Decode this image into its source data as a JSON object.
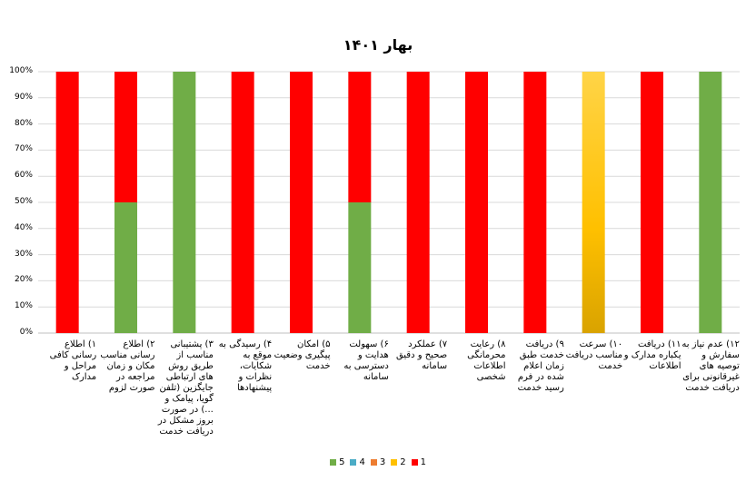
{
  "chart_data": {
    "type": "bar",
    "stacked": true,
    "title": "بهار ۱۴۰۱",
    "ylim": [
      0,
      100
    ],
    "yticks": [
      "0%",
      "10%",
      "20%",
      "30%",
      "40%",
      "50%",
      "60%",
      "70%",
      "80%",
      "90%",
      "100%"
    ],
    "grid": true,
    "legend_position": "bottom",
    "categories": [
      "۱) اطلاع رسانی کافی مراحل و مدارک",
      "۲) اطلاع رسانی مناسب مکان و زمان مراجعه در صورت لزوم",
      "۳) پشتیبانی مناسب از طریق روش های ارتباطی جایگزین (تلفن گویا، پیامک و ...) در صورت بروز مشکل در دریافت خدمت",
      "۴) رسیدگی به موقع به شکایات، نظرات و پیشنهادها",
      "۵) امکان پیگیری وضعیت خدمت",
      "۶) سهولت هدایت و دسترسی به سامانه",
      "۷) عملکرد صحیح و دقیق سامانه",
      "۸) رعایت محرمانگی اطلاعات شخصی",
      "۹) دریافت خدمت طبق زمان اعلام شده در فرم رسید خدمت",
      "۱۰) سرعت مناسب دریافت خدمت",
      "۱۱) دریافت یکباره مدارک و اطلاعات",
      "۱۲) عدم نیاز به سفارش و توصیه های غیرقانونی برای دریافت خدمت"
    ],
    "series": [
      {
        "name": "5",
        "color": "#70ad47",
        "values": [
          0,
          50,
          100,
          0,
          0,
          50,
          0,
          0,
          0,
          0,
          0,
          100
        ]
      },
      {
        "name": "4",
        "color": "#4bacc6",
        "values": [
          0,
          0,
          0,
          0,
          0,
          0,
          0,
          0,
          0,
          0,
          0,
          0
        ]
      },
      {
        "name": "3",
        "color": "#ed7d31",
        "values": [
          0,
          0,
          0,
          0,
          0,
          0,
          0,
          0,
          0,
          0,
          0,
          0
        ]
      },
      {
        "name": "2",
        "color": "#ffc000",
        "values": [
          0,
          0,
          0,
          0,
          0,
          0,
          0,
          0,
          0,
          100,
          0,
          0
        ]
      },
      {
        "name": "1",
        "color": "#ff0000",
        "values": [
          100,
          50,
          0,
          100,
          100,
          50,
          100,
          100,
          100,
          0,
          100,
          0
        ]
      }
    ]
  }
}
